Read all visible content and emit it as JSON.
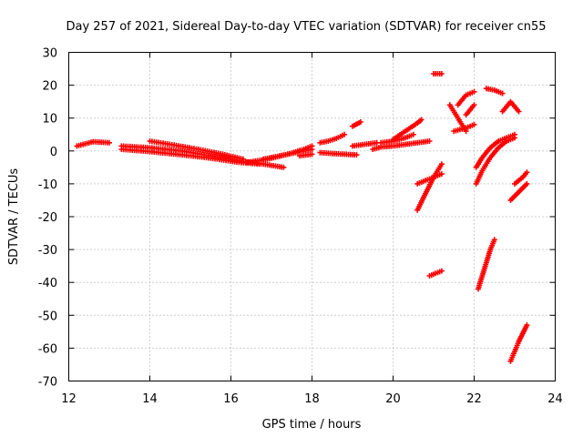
{
  "chart_data": {
    "type": "scatter",
    "title": "Day 257 of 2021, Sidereal Day-to-day VTEC variation (SDTVAR) for receiver cn55",
    "xlabel": "GPS time / hours",
    "ylabel": "SDTVAR / TECUs",
    "xlim": [
      12,
      24
    ],
    "ylim": [
      -70,
      30
    ],
    "x_ticks": [
      12,
      14,
      16,
      18,
      20,
      22,
      24
    ],
    "y_ticks": [
      -70,
      -60,
      -50,
      -40,
      -30,
      -20,
      -10,
      0,
      10,
      20,
      30
    ],
    "grid": true,
    "marker": "plus",
    "color": "#ff0000",
    "tracks": [
      {
        "x": [
          12.2,
          12.6,
          13.0
        ],
        "y": [
          1.5,
          2.8,
          2.5
        ]
      },
      {
        "x": [
          13.3,
          14.0,
          14.8,
          15.5,
          16.2,
          16.8,
          17.3
        ],
        "y": [
          1.5,
          1.0,
          0.0,
          -1.5,
          -3.0,
          -4.0,
          -5.0
        ]
      },
      {
        "x": [
          13.3,
          14.0,
          14.8,
          15.5,
          16.2,
          16.7
        ],
        "y": [
          0.5,
          -0.2,
          -1.2,
          -2.2,
          -3.5,
          -4.0
        ]
      },
      {
        "x": [
          14.0,
          14.6,
          15.2,
          15.8,
          16.3
        ],
        "y": [
          3.0,
          1.8,
          0.5,
          -1.0,
          -2.5
        ]
      },
      {
        "x": [
          16.4,
          16.9,
          17.4,
          17.8,
          18.0
        ],
        "y": [
          -3.5,
          -2.5,
          -1.0,
          0.5,
          1.5
        ]
      },
      {
        "x": [
          16.8,
          17.2,
          17.6,
          18.0
        ],
        "y": [
          -2.5,
          -1.5,
          -0.5,
          0.5
        ]
      },
      {
        "x": [
          17.7,
          18.0
        ],
        "y": [
          -1.5,
          -1.0
        ]
      },
      {
        "x": [
          18.2,
          18.5,
          18.8,
          19.1
        ],
        "y": [
          -0.5,
          -0.8,
          -1.0,
          -1.2
        ]
      },
      {
        "x": [
          18.2,
          18.4,
          18.6,
          18.8
        ],
        "y": [
          2.5,
          3.0,
          3.8,
          5.0
        ]
      },
      {
        "x": [
          19.0,
          19.2
        ],
        "y": [
          7.5,
          8.8
        ]
      },
      {
        "x": [
          19.0,
          19.3,
          19.6
        ],
        "y": [
          1.5,
          2.0,
          2.5
        ]
      },
      {
        "x": [
          19.5,
          19.7,
          20.0,
          20.3,
          20.6,
          20.9
        ],
        "y": [
          0.5,
          1.2,
          1.5,
          2.0,
          2.5,
          3.0
        ]
      },
      {
        "x": [
          19.7,
          20.0,
          20.3,
          20.5
        ],
        "y": [
          2.5,
          3.0,
          4.0,
          5.0
        ]
      },
      {
        "x": [
          20.0,
          20.3,
          20.6,
          20.7
        ],
        "y": [
          3.5,
          6.0,
          8.5,
          9.5
        ]
      },
      {
        "x": [
          20.6,
          20.8,
          21.0,
          21.2
        ],
        "y": [
          -10.0,
          -9.0,
          -8.0,
          -7.0
        ]
      },
      {
        "x": [
          20.6,
          20.8,
          21.0,
          21.2
        ],
        "y": [
          -18.0,
          -13.0,
          -8.0,
          -4.0
        ]
      },
      {
        "x": [
          20.9,
          21.1,
          21.2
        ],
        "y": [
          -38.0,
          -37.0,
          -36.5
        ]
      },
      {
        "x": [
          21.0,
          21.2
        ],
        "y": [
          23.5,
          23.5
        ]
      },
      {
        "x": [
          21.4,
          21.6,
          21.8
        ],
        "y": [
          14.0,
          10.0,
          6.0
        ]
      },
      {
        "x": [
          21.5,
          21.8,
          22.0
        ],
        "y": [
          6.0,
          7.0,
          8.0
        ]
      },
      {
        "x": [
          21.6,
          21.8,
          22.0
        ],
        "y": [
          14.0,
          17.0,
          18.0
        ]
      },
      {
        "x": [
          21.8,
          22.0
        ],
        "y": [
          11.0,
          14.0
        ]
      },
      {
        "x": [
          22.05,
          22.2,
          22.4,
          22.6,
          22.8,
          23.0
        ],
        "y": [
          -5.0,
          -2.0,
          1.0,
          3.0,
          4.0,
          5.0
        ]
      },
      {
        "x": [
          22.05,
          22.2,
          22.4,
          22.6,
          22.8,
          23.0
        ],
        "y": [
          -10.0,
          -6.0,
          -2.0,
          1.0,
          3.0,
          4.0
        ]
      },
      {
        "x": [
          22.1,
          22.2,
          22.3,
          22.4,
          22.5
        ],
        "y": [
          -42.0,
          -38.0,
          -34.0,
          -30.0,
          -27.0
        ]
      },
      {
        "x": [
          22.3,
          22.5,
          22.7
        ],
        "y": [
          19.0,
          18.5,
          17.5
        ]
      },
      {
        "x": [
          22.7,
          22.9,
          23.1
        ],
        "y": [
          12.0,
          15.0,
          12.0
        ]
      },
      {
        "x": [
          22.9,
          23.1,
          23.3
        ],
        "y": [
          -15.0,
          -12.5,
          -10.0
        ]
      },
      {
        "x": [
          23.0,
          23.2,
          23.3
        ],
        "y": [
          -10.0,
          -8.0,
          -6.5
        ]
      },
      {
        "x": [
          22.9,
          23.0,
          23.1,
          23.2,
          23.3
        ],
        "y": [
          -64.0,
          -61.0,
          -58.0,
          -55.5,
          -53.0
        ]
      }
    ]
  }
}
